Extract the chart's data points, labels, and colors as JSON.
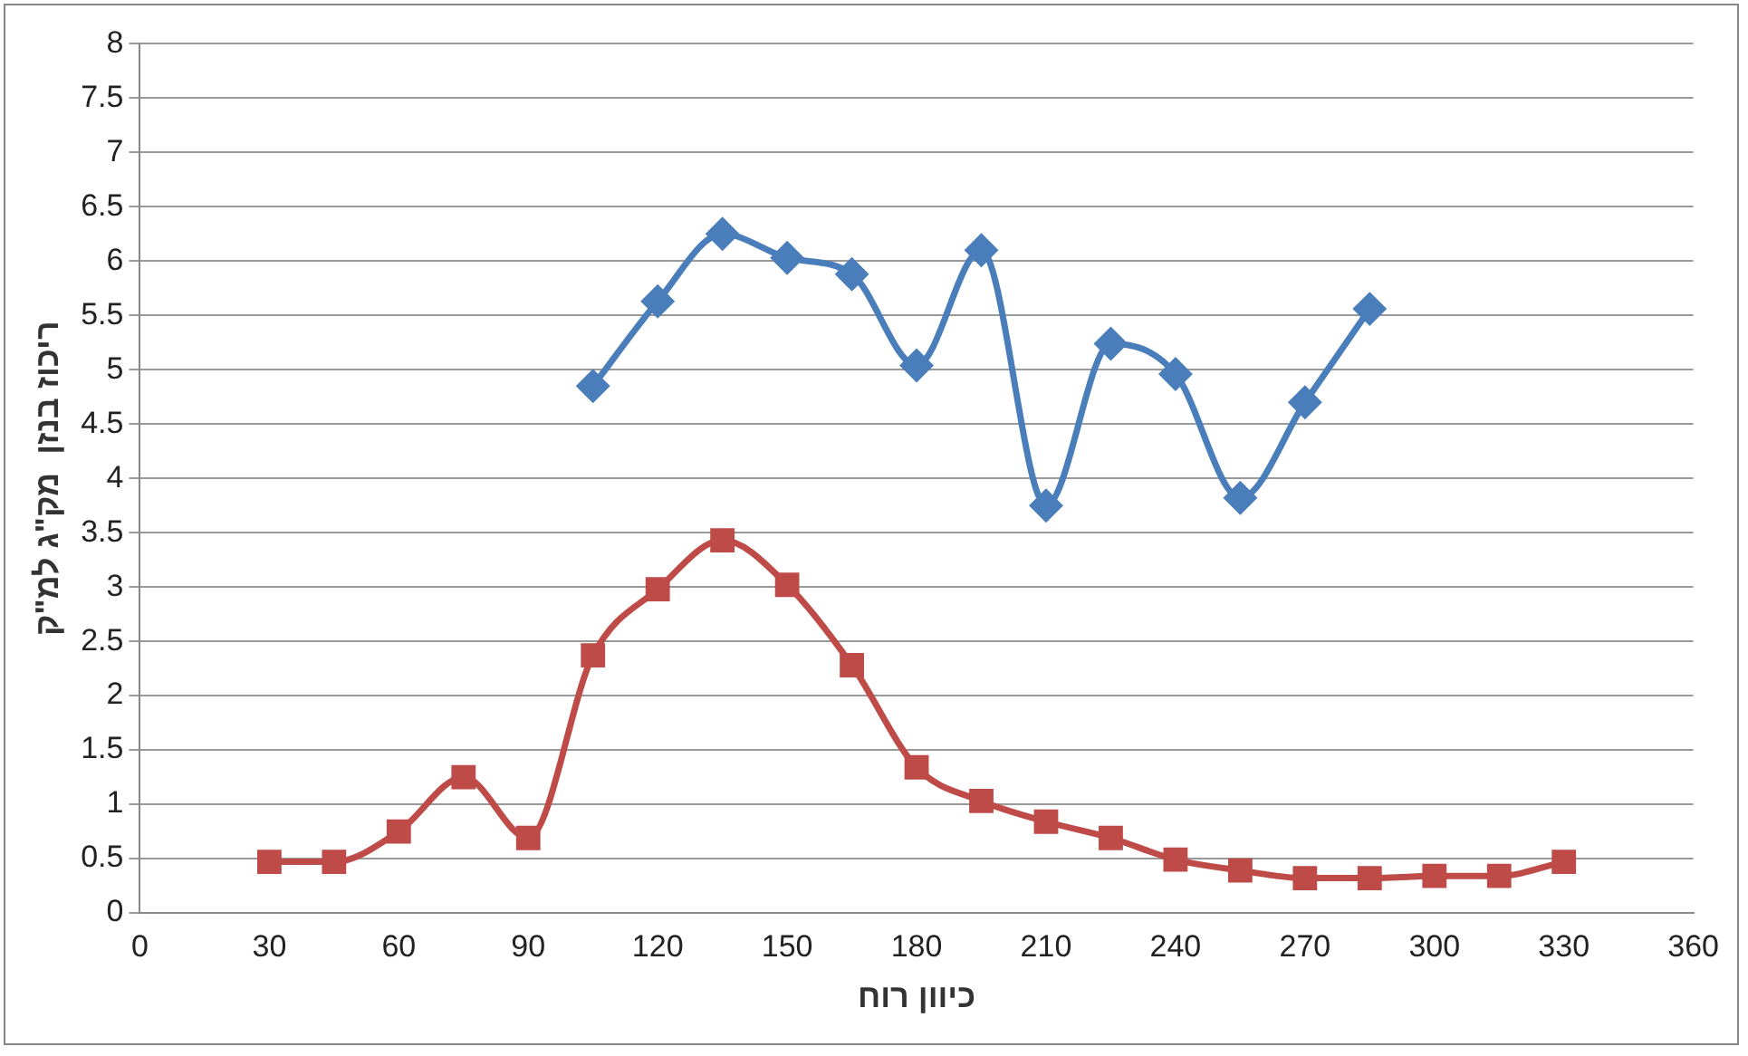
{
  "chart_data": {
    "type": "line",
    "xlabel": "כיוון רוח",
    "ylabel": "ריכוז בנזן  מק\"ג למ\"ק",
    "xlim": [
      0,
      360
    ],
    "xticks": [
      0,
      30,
      60,
      90,
      120,
      150,
      180,
      210,
      240,
      270,
      300,
      330,
      360
    ],
    "ylim": [
      0,
      8
    ],
    "yticks": [
      0,
      0.5,
      1,
      1.5,
      2,
      2.5,
      3,
      3.5,
      4,
      4.5,
      5,
      5.5,
      6,
      6.5,
      7,
      7.5,
      8
    ],
    "grid": "y",
    "legend": false,
    "line_style": "solid",
    "series": [
      {
        "color": "#4a7ebb",
        "marker": "diamond",
        "x": [
          105,
          120,
          135,
          150,
          165,
          180,
          195,
          210,
          225,
          240,
          255,
          270,
          285
        ],
        "values": [
          4.85,
          5.63,
          6.25,
          6.03,
          5.88,
          5.04,
          6.1,
          3.75,
          5.24,
          4.96,
          3.82,
          4.7,
          5.56
        ]
      },
      {
        "color": "#be4b48",
        "marker": "square",
        "x": [
          30,
          45,
          60,
          75,
          90,
          105,
          120,
          135,
          150,
          165,
          180,
          195,
          210,
          225,
          240,
          255,
          270,
          285,
          300,
          315,
          330
        ],
        "values": [
          0.47,
          0.47,
          0.75,
          1.25,
          0.69,
          2.37,
          2.98,
          3.43,
          3.02,
          2.28,
          1.34,
          1.03,
          0.84,
          0.69,
          0.49,
          0.39,
          0.32,
          0.32,
          0.34,
          0.34,
          0.47
        ]
      }
    ]
  }
}
